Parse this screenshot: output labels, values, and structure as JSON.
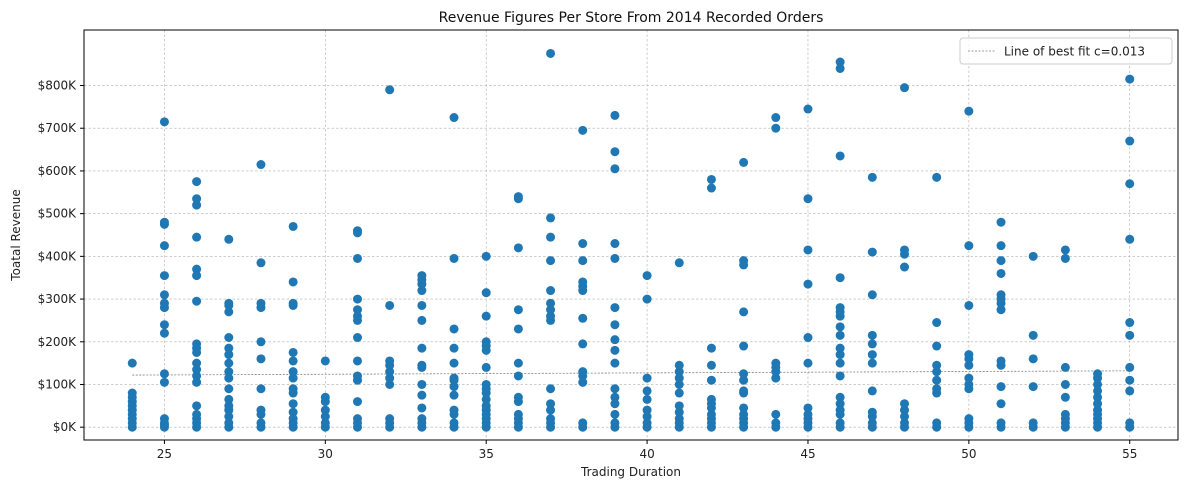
{
  "chart_data": {
    "type": "scatter",
    "title": "Revenue Figures Per Store From 2014 Recorded Orders",
    "xlabel": "Trading Duration",
    "ylabel": "Toatal Revenue",
    "xlim": [
      22.5,
      56.5
    ],
    "ylim": [
      -30000,
      930000
    ],
    "x_ticks": [
      25,
      30,
      35,
      40,
      45,
      50,
      55
    ],
    "y_ticks": [
      0,
      100000,
      200000,
      300000,
      400000,
      500000,
      600000,
      700000,
      800000
    ],
    "y_tick_labels": [
      "$0K",
      "$100K",
      "$200K",
      "$300K",
      "$400K",
      "$500K",
      "$600K",
      "$700K",
      "$800K"
    ],
    "grid": true,
    "legend_position": "top-right",
    "marker_color": "#1f77b4",
    "fit_line_color": "#7f7f7f",
    "fit_line": {
      "label": "Line of best fit c=0.013",
      "x": [
        24,
        55
      ],
      "y": [
        122000,
        132000
      ]
    },
    "points": [
      [
        24,
        0
      ],
      [
        24,
        10000
      ],
      [
        24,
        20000
      ],
      [
        24,
        30000
      ],
      [
        24,
        40000
      ],
      [
        24,
        50000
      ],
      [
        24,
        60000
      ],
      [
        24,
        70000
      ],
      [
        24,
        80000
      ],
      [
        24,
        150000
      ],
      [
        25,
        0
      ],
      [
        25,
        5000
      ],
      [
        25,
        10000
      ],
      [
        25,
        20000
      ],
      [
        25,
        105000
      ],
      [
        25,
        125000
      ],
      [
        25,
        220000
      ],
      [
        25,
        240000
      ],
      [
        25,
        280000
      ],
      [
        25,
        290000
      ],
      [
        25,
        310000
      ],
      [
        25,
        355000
      ],
      [
        25,
        425000
      ],
      [
        25,
        475000
      ],
      [
        25,
        480000
      ],
      [
        25,
        715000
      ],
      [
        26,
        0
      ],
      [
        26,
        10000
      ],
      [
        26,
        20000
      ],
      [
        26,
        30000
      ],
      [
        26,
        50000
      ],
      [
        26,
        105000
      ],
      [
        26,
        120000
      ],
      [
        26,
        135000
      ],
      [
        26,
        150000
      ],
      [
        26,
        175000
      ],
      [
        26,
        185000
      ],
      [
        26,
        195000
      ],
      [
        26,
        295000
      ],
      [
        26,
        355000
      ],
      [
        26,
        370000
      ],
      [
        26,
        445000
      ],
      [
        26,
        520000
      ],
      [
        26,
        535000
      ],
      [
        26,
        575000
      ],
      [
        27,
        0
      ],
      [
        27,
        10000
      ],
      [
        27,
        25000
      ],
      [
        27,
        40000
      ],
      [
        27,
        50000
      ],
      [
        27,
        65000
      ],
      [
        27,
        90000
      ],
      [
        27,
        115000
      ],
      [
        27,
        130000
      ],
      [
        27,
        150000
      ],
      [
        27,
        170000
      ],
      [
        27,
        185000
      ],
      [
        27,
        210000
      ],
      [
        27,
        270000
      ],
      [
        27,
        285000
      ],
      [
        27,
        290000
      ],
      [
        27,
        440000
      ],
      [
        28,
        0
      ],
      [
        28,
        10000
      ],
      [
        28,
        30000
      ],
      [
        28,
        40000
      ],
      [
        28,
        90000
      ],
      [
        28,
        160000
      ],
      [
        28,
        200000
      ],
      [
        28,
        280000
      ],
      [
        28,
        290000
      ],
      [
        28,
        385000
      ],
      [
        28,
        615000
      ],
      [
        29,
        0
      ],
      [
        29,
        10000
      ],
      [
        29,
        20000
      ],
      [
        29,
        35000
      ],
      [
        29,
        55000
      ],
      [
        29,
        80000
      ],
      [
        29,
        90000
      ],
      [
        29,
        115000
      ],
      [
        29,
        130000
      ],
      [
        29,
        155000
      ],
      [
        29,
        175000
      ],
      [
        29,
        285000
      ],
      [
        29,
        290000
      ],
      [
        29,
        340000
      ],
      [
        29,
        470000
      ],
      [
        30,
        0
      ],
      [
        30,
        10000
      ],
      [
        30,
        25000
      ],
      [
        30,
        40000
      ],
      [
        30,
        60000
      ],
      [
        30,
        70000
      ],
      [
        30,
        155000
      ],
      [
        31,
        0
      ],
      [
        31,
        10000
      ],
      [
        31,
        20000
      ],
      [
        31,
        60000
      ],
      [
        31,
        110000
      ],
      [
        31,
        120000
      ],
      [
        31,
        155000
      ],
      [
        31,
        210000
      ],
      [
        31,
        250000
      ],
      [
        31,
        260000
      ],
      [
        31,
        275000
      ],
      [
        31,
        300000
      ],
      [
        31,
        395000
      ],
      [
        31,
        455000
      ],
      [
        31,
        460000
      ],
      [
        32,
        0
      ],
      [
        32,
        10000
      ],
      [
        32,
        20000
      ],
      [
        32,
        100000
      ],
      [
        32,
        115000
      ],
      [
        32,
        130000
      ],
      [
        32,
        145000
      ],
      [
        32,
        155000
      ],
      [
        32,
        285000
      ],
      [
        32,
        790000
      ],
      [
        33,
        0
      ],
      [
        33,
        10000
      ],
      [
        33,
        20000
      ],
      [
        33,
        45000
      ],
      [
        33,
        75000
      ],
      [
        33,
        100000
      ],
      [
        33,
        140000
      ],
      [
        33,
        145000
      ],
      [
        33,
        185000
      ],
      [
        33,
        250000
      ],
      [
        33,
        285000
      ],
      [
        33,
        320000
      ],
      [
        33,
        335000
      ],
      [
        33,
        345000
      ],
      [
        33,
        355000
      ],
      [
        34,
        0
      ],
      [
        34,
        10000
      ],
      [
        34,
        30000
      ],
      [
        34,
        40000
      ],
      [
        34,
        75000
      ],
      [
        34,
        95000
      ],
      [
        34,
        110000
      ],
      [
        34,
        115000
      ],
      [
        34,
        150000
      ],
      [
        34,
        185000
      ],
      [
        34,
        230000
      ],
      [
        34,
        395000
      ],
      [
        34,
        725000
      ],
      [
        35,
        0
      ],
      [
        35,
        10000
      ],
      [
        35,
        20000
      ],
      [
        35,
        30000
      ],
      [
        35,
        40000
      ],
      [
        35,
        50000
      ],
      [
        35,
        65000
      ],
      [
        35,
        80000
      ],
      [
        35,
        90000
      ],
      [
        35,
        100000
      ],
      [
        35,
        140000
      ],
      [
        35,
        180000
      ],
      [
        35,
        190000
      ],
      [
        35,
        200000
      ],
      [
        35,
        260000
      ],
      [
        35,
        315000
      ],
      [
        35,
        400000
      ],
      [
        36,
        0
      ],
      [
        36,
        10000
      ],
      [
        36,
        20000
      ],
      [
        36,
        30000
      ],
      [
        36,
        60000
      ],
      [
        36,
        70000
      ],
      [
        36,
        120000
      ],
      [
        36,
        150000
      ],
      [
        36,
        230000
      ],
      [
        36,
        275000
      ],
      [
        36,
        420000
      ],
      [
        36,
        535000
      ],
      [
        36,
        540000
      ],
      [
        37,
        0
      ],
      [
        37,
        10000
      ],
      [
        37,
        20000
      ],
      [
        37,
        40000
      ],
      [
        37,
        55000
      ],
      [
        37,
        90000
      ],
      [
        37,
        250000
      ],
      [
        37,
        260000
      ],
      [
        37,
        275000
      ],
      [
        37,
        290000
      ],
      [
        37,
        320000
      ],
      [
        37,
        390000
      ],
      [
        37,
        445000
      ],
      [
        37,
        490000
      ],
      [
        37,
        875000
      ],
      [
        38,
        0
      ],
      [
        38,
        10000
      ],
      [
        38,
        105000
      ],
      [
        38,
        120000
      ],
      [
        38,
        130000
      ],
      [
        38,
        195000
      ],
      [
        38,
        255000
      ],
      [
        38,
        320000
      ],
      [
        38,
        330000
      ],
      [
        38,
        340000
      ],
      [
        38,
        390000
      ],
      [
        38,
        430000
      ],
      [
        38,
        695000
      ],
      [
        39,
        0
      ],
      [
        39,
        10000
      ],
      [
        39,
        30000
      ],
      [
        39,
        55000
      ],
      [
        39,
        70000
      ],
      [
        39,
        90000
      ],
      [
        39,
        150000
      ],
      [
        39,
        180000
      ],
      [
        39,
        205000
      ],
      [
        39,
        240000
      ],
      [
        39,
        280000
      ],
      [
        39,
        395000
      ],
      [
        39,
        430000
      ],
      [
        39,
        605000
      ],
      [
        39,
        645000
      ],
      [
        39,
        730000
      ],
      [
        40,
        0
      ],
      [
        40,
        10000
      ],
      [
        40,
        25000
      ],
      [
        40,
        40000
      ],
      [
        40,
        65000
      ],
      [
        40,
        85000
      ],
      [
        40,
        115000
      ],
      [
        40,
        300000
      ],
      [
        40,
        355000
      ],
      [
        41,
        0
      ],
      [
        41,
        10000
      ],
      [
        41,
        20000
      ],
      [
        41,
        35000
      ],
      [
        41,
        50000
      ],
      [
        41,
        80000
      ],
      [
        41,
        100000
      ],
      [
        41,
        115000
      ],
      [
        41,
        130000
      ],
      [
        41,
        145000
      ],
      [
        41,
        385000
      ],
      [
        42,
        0
      ],
      [
        42,
        10000
      ],
      [
        42,
        20000
      ],
      [
        42,
        30000
      ],
      [
        42,
        45000
      ],
      [
        42,
        55000
      ],
      [
        42,
        65000
      ],
      [
        42,
        110000
      ],
      [
        42,
        145000
      ],
      [
        42,
        185000
      ],
      [
        42,
        560000
      ],
      [
        42,
        580000
      ],
      [
        43,
        0
      ],
      [
        43,
        10000
      ],
      [
        43,
        20000
      ],
      [
        43,
        30000
      ],
      [
        43,
        45000
      ],
      [
        43,
        80000
      ],
      [
        43,
        85000
      ],
      [
        43,
        110000
      ],
      [
        43,
        125000
      ],
      [
        43,
        190000
      ],
      [
        43,
        270000
      ],
      [
        43,
        380000
      ],
      [
        43,
        390000
      ],
      [
        43,
        620000
      ],
      [
        44,
        0
      ],
      [
        44,
        10000
      ],
      [
        44,
        30000
      ],
      [
        44,
        115000
      ],
      [
        44,
        130000
      ],
      [
        44,
        140000
      ],
      [
        44,
        150000
      ],
      [
        44,
        700000
      ],
      [
        44,
        725000
      ],
      [
        45,
        0
      ],
      [
        45,
        10000
      ],
      [
        45,
        20000
      ],
      [
        45,
        30000
      ],
      [
        45,
        45000
      ],
      [
        45,
        150000
      ],
      [
        45,
        210000
      ],
      [
        45,
        335000
      ],
      [
        45,
        415000
      ],
      [
        45,
        535000
      ],
      [
        45,
        745000
      ],
      [
        46,
        0
      ],
      [
        46,
        10000
      ],
      [
        46,
        30000
      ],
      [
        46,
        40000
      ],
      [
        46,
        55000
      ],
      [
        46,
        70000
      ],
      [
        46,
        120000
      ],
      [
        46,
        150000
      ],
      [
        46,
        170000
      ],
      [
        46,
        185000
      ],
      [
        46,
        215000
      ],
      [
        46,
        235000
      ],
      [
        46,
        260000
      ],
      [
        46,
        270000
      ],
      [
        46,
        280000
      ],
      [
        46,
        350000
      ],
      [
        46,
        635000
      ],
      [
        46,
        840000
      ],
      [
        46,
        855000
      ],
      [
        47,
        0
      ],
      [
        47,
        10000
      ],
      [
        47,
        25000
      ],
      [
        47,
        35000
      ],
      [
        47,
        85000
      ],
      [
        47,
        150000
      ],
      [
        47,
        170000
      ],
      [
        47,
        195000
      ],
      [
        47,
        215000
      ],
      [
        47,
        310000
      ],
      [
        47,
        410000
      ],
      [
        47,
        585000
      ],
      [
        48,
        0
      ],
      [
        48,
        10000
      ],
      [
        48,
        25000
      ],
      [
        48,
        40000
      ],
      [
        48,
        55000
      ],
      [
        48,
        375000
      ],
      [
        48,
        405000
      ],
      [
        48,
        415000
      ],
      [
        48,
        795000
      ],
      [
        49,
        0
      ],
      [
        49,
        10000
      ],
      [
        49,
        80000
      ],
      [
        49,
        90000
      ],
      [
        49,
        110000
      ],
      [
        49,
        130000
      ],
      [
        49,
        145000
      ],
      [
        49,
        190000
      ],
      [
        49,
        245000
      ],
      [
        49,
        585000
      ],
      [
        50,
        0
      ],
      [
        50,
        10000
      ],
      [
        50,
        20000
      ],
      [
        50,
        90000
      ],
      [
        50,
        100000
      ],
      [
        50,
        115000
      ],
      [
        50,
        145000
      ],
      [
        50,
        160000
      ],
      [
        50,
        170000
      ],
      [
        50,
        285000
      ],
      [
        50,
        425000
      ],
      [
        50,
        740000
      ],
      [
        51,
        0
      ],
      [
        51,
        10000
      ],
      [
        51,
        55000
      ],
      [
        51,
        95000
      ],
      [
        51,
        145000
      ],
      [
        51,
        155000
      ],
      [
        51,
        275000
      ],
      [
        51,
        290000
      ],
      [
        51,
        300000
      ],
      [
        51,
        310000
      ],
      [
        51,
        360000
      ],
      [
        51,
        390000
      ],
      [
        51,
        425000
      ],
      [
        51,
        480000
      ],
      [
        52,
        0
      ],
      [
        52,
        10000
      ],
      [
        52,
        95000
      ],
      [
        52,
        160000
      ],
      [
        52,
        215000
      ],
      [
        52,
        400000
      ],
      [
        53,
        0
      ],
      [
        53,
        10000
      ],
      [
        53,
        20000
      ],
      [
        53,
        30000
      ],
      [
        53,
        70000
      ],
      [
        53,
        100000
      ],
      [
        53,
        140000
      ],
      [
        53,
        395000
      ],
      [
        53,
        415000
      ],
      [
        54,
        0
      ],
      [
        54,
        10000
      ],
      [
        54,
        20000
      ],
      [
        54,
        30000
      ],
      [
        54,
        40000
      ],
      [
        54,
        55000
      ],
      [
        54,
        70000
      ],
      [
        54,
        85000
      ],
      [
        54,
        100000
      ],
      [
        54,
        115000
      ],
      [
        54,
        125000
      ],
      [
        55,
        0
      ],
      [
        55,
        10000
      ],
      [
        55,
        85000
      ],
      [
        55,
        110000
      ],
      [
        55,
        140000
      ],
      [
        55,
        215000
      ],
      [
        55,
        245000
      ],
      [
        55,
        440000
      ],
      [
        55,
        570000
      ],
      [
        55,
        670000
      ],
      [
        55,
        815000
      ]
    ]
  }
}
